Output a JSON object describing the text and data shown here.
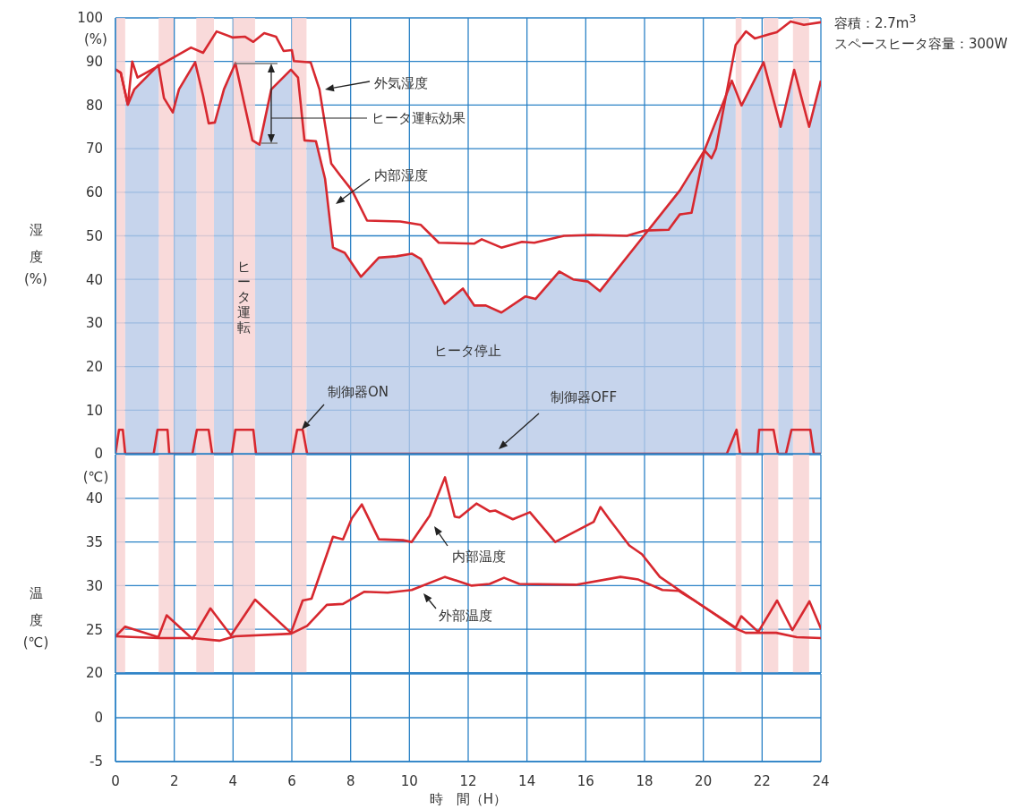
{
  "chart_data": [
    {
      "type": "line",
      "ylabel": "湿度(%)",
      "xlim": [
        0,
        24
      ],
      "xticks": [
        0,
        2,
        4,
        6,
        8,
        10,
        12,
        14,
        16,
        18,
        20,
        22,
        24
      ],
      "ylim": [
        0,
        100
      ],
      "yticks": [
        0,
        10,
        20,
        30,
        40,
        50,
        60,
        70,
        80,
        90,
        100
      ],
      "grid": true,
      "tick_labels": "y",
      "series": [
        {
          "type": "area",
          "color": "#d7282f",
          "x": [
            0,
            0.18,
            0.42,
            0.64,
            1.46,
            1.65,
            1.95,
            2.16,
            2.71,
            2.98,
            3.17,
            3.38,
            3.69,
            4.08,
            4.39,
            4.66,
            4.9,
            5.3,
            5.97,
            6.21,
            6.43,
            6.82,
            7.13,
            7.4,
            7.8,
            8.35,
            8.96,
            9.56,
            10.08,
            10.39,
            11.2,
            11.82,
            12.21,
            12.6,
            13.13,
            13.95,
            14.29,
            15.1,
            15.57,
            16.08,
            16.48,
            18.0,
            19.2,
            20.04,
            20.97,
            21.3,
            22.05,
            22.63,
            23.09,
            23.6,
            24
          ],
          "values": [
            88.2,
            87.4,
            80.1,
            83.6,
            89.2,
            81.6,
            78.3,
            83.6,
            89.8,
            82.2,
            75.8,
            76,
            83.6,
            89.6,
            80.1,
            71.9,
            70.9,
            83.6,
            88.1,
            86.3,
            71.9,
            71.7,
            63.1,
            47.3,
            46.1,
            40.6,
            45,
            45.3,
            45.9,
            44.7,
            34.4,
            37.9,
            34,
            34,
            32.4,
            36.1,
            35.5,
            41.8,
            40,
            39.5,
            37.3,
            50.2,
            60.4,
            69.6,
            85.6,
            79.9,
            89.8,
            75,
            88.1,
            75,
            85.6
          ]
        },
        {
          "type": "line",
          "color": "#d7282f",
          "x": [
            0,
            0.18,
            0.42,
            0.57,
            0.75,
            1.55,
            2.57,
            2.98,
            3.44,
            3.99,
            4.4,
            4.69,
            5.06,
            5.46,
            5.72,
            6.0,
            6.07,
            6.64,
            6.94,
            7.34,
            7.65,
            8.05,
            8.56,
            9.69,
            10.39,
            11.0,
            12.2,
            12.46,
            13.13,
            13.83,
            14.25,
            15.26,
            16.2,
            17.4,
            18.0,
            18.82,
            19.2,
            19.6,
            20.04,
            20.28,
            20.43,
            21.1,
            21.45,
            21.75,
            22.27,
            22.5,
            22.97,
            23.42,
            24
          ],
          "values": [
            88.2,
            87.4,
            80.1,
            90,
            86.3,
            89.3,
            93.2,
            92,
            96.9,
            95.5,
            95.7,
            94.5,
            96.5,
            95.7,
            92.4,
            92.6,
            90.1,
            89.8,
            83.6,
            66.6,
            63.8,
            60.4,
            53.5,
            53.3,
            52.5,
            48.4,
            48.2,
            49.2,
            47.3,
            48.6,
            48.4,
            50,
            50.2,
            50,
            51.2,
            51.4,
            54.9,
            55.3,
            69.6,
            67.8,
            70,
            93.8,
            96.9,
            95.3,
            96.3,
            96.7,
            99.2,
            98.4,
            99
          ]
        },
        {
          "type": "line",
          "color": "#d7282f",
          "x": [
            0,
            0.12,
            0.25,
            0.33,
            1.3,
            1.43,
            1.77,
            1.83,
            2.62,
            2.77,
            3.17,
            3.29,
            3.96,
            4.08,
            4.69,
            4.78,
            6.03,
            6.18,
            6.37,
            6.52,
            20.8,
            21.13,
            21.25,
            21.84,
            21.9,
            22.39,
            22.54,
            22.81,
            23.0,
            23.64,
            23.76,
            24
          ],
          "values": [
            0,
            5.5,
            5.5,
            0,
            0,
            5.5,
            5.5,
            0,
            0,
            5.5,
            5.5,
            0,
            0,
            5.5,
            5.5,
            0,
            0,
            5.5,
            5.5,
            0,
            0,
            5.5,
            0,
            0,
            5.5,
            5.5,
            0,
            0,
            5.5,
            5.5,
            0,
            0
          ]
        }
      ],
      "bands": [
        {
          "axis": "x",
          "from": 0,
          "to": 0.33,
          "color": "#f8d4d3"
        },
        {
          "axis": "x",
          "from": 1.47,
          "to": 1.98,
          "color": "#f8d4d3"
        },
        {
          "axis": "x",
          "from": 2.75,
          "to": 3.35,
          "color": "#f8d4d3"
        },
        {
          "axis": "x",
          "from": 4.0,
          "to": 4.75,
          "color": "#f8d4d3"
        },
        {
          "axis": "x",
          "from": 6.0,
          "to": 6.5,
          "color": "#f8d4d3"
        },
        {
          "axis": "x",
          "from": 21.1,
          "to": 21.3,
          "color": "#f8d4d3"
        },
        {
          "axis": "x",
          "from": 22.05,
          "to": 22.55,
          "color": "#f8d4d3"
        },
        {
          "axis": "x",
          "from": 23.05,
          "to": 23.6,
          "color": "#f8d4d3"
        }
      ],
      "annotations": [
        "(%)",
        "容積：2.7m$^{3}$",
        "スペースヒータ容量：300W",
        "外気湿度",
        "ヒータ運転効果",
        "内部湿度",
        "ヒータ運転",
        "ヒータ停止",
        "制御器ON",
        "制御器OFF"
      ]
    },
    {
      "type": "line",
      "ylabel": "温度(℃)",
      "xlim": [
        0,
        24
      ],
      "xticks": [
        0,
        2,
        4,
        6,
        8,
        10,
        12,
        14,
        16,
        18,
        20,
        22,
        24
      ],
      "ylim": [
        20,
        45
      ],
      "yticks": [
        20,
        25,
        30,
        35,
        40
      ],
      "grid": true,
      "tick_labels": "y",
      "series": [
        {
          "color": "#d7282f",
          "x": [
            0,
            0.33,
            1.46,
            1.74,
            2.62,
            3.23,
            3.93,
            4.75,
            5.97,
            6.37,
            6.67,
            7.4,
            7.74,
            8.04,
            8.38,
            8.96,
            9.78,
            10.08,
            10.69,
            11.21,
            11.54,
            11.7,
            12.28,
            12.73,
            12.92,
            13.52,
            14.1,
            14.96,
            16.27,
            16.5,
            16.78,
            17.48,
            17.91,
            18.52,
            19.74,
            21.1,
            21.29,
            21.87,
            22.51,
            23.03,
            23.61,
            24
          ],
          "values": [
            24.2,
            25.3,
            24.1,
            26.6,
            23.9,
            27.4,
            24.3,
            28.4,
            24.6,
            28.3,
            28.5,
            35.6,
            35.3,
            37.7,
            39.3,
            35.3,
            35.2,
            35,
            38,
            42.4,
            37.9,
            37.8,
            39.4,
            38.5,
            38.6,
            37.6,
            38.4,
            35,
            37.3,
            39,
            37.7,
            34.6,
            33.6,
            31,
            28.2,
            25.2,
            26.5,
            24.7,
            28.3,
            24.9,
            28.2,
            25.1
          ]
        },
        {
          "color": "#d7282f",
          "x": [
            0,
            1.46,
            2.62,
            3.53,
            4.08,
            5.97,
            6.52,
            7.19,
            7.74,
            8.47,
            9.26,
            10.08,
            11.21,
            12.12,
            12.73,
            13.22,
            13.74,
            15.66,
            17.18,
            17.79,
            18.61,
            19.16,
            19.74,
            21.1,
            21.44,
            22.48,
            23.18,
            24
          ],
          "values": [
            24.2,
            24,
            24,
            23.7,
            24.2,
            24.5,
            25.4,
            27.8,
            27.9,
            29.3,
            29.2,
            29.5,
            31,
            30,
            30.2,
            30.9,
            30.2,
            30.1,
            31,
            30.7,
            29.5,
            29.4,
            28.2,
            25.1,
            24.6,
            24.6,
            24.1,
            24
          ]
        }
      ],
      "bands": [
        {
          "axis": "x",
          "from": 0,
          "to": 0.33,
          "color": "#f8d4d3"
        },
        {
          "axis": "x",
          "from": 1.47,
          "to": 1.98,
          "color": "#f8d4d3"
        },
        {
          "axis": "x",
          "from": 2.75,
          "to": 3.35,
          "color": "#f8d4d3"
        },
        {
          "axis": "x",
          "from": 4.0,
          "to": 4.75,
          "color": "#f8d4d3"
        },
        {
          "axis": "x",
          "from": 6.0,
          "to": 6.5,
          "color": "#f8d4d3"
        },
        {
          "axis": "x",
          "from": 21.1,
          "to": 21.3,
          "color": "#f8d4d3"
        },
        {
          "axis": "x",
          "from": 22.05,
          "to": 22.55,
          "color": "#f8d4d3"
        },
        {
          "axis": "x",
          "from": 23.05,
          "to": 23.6,
          "color": "#f8d4d3"
        }
      ],
      "annotations": [
        "(℃)",
        "内部温度",
        "外部温度"
      ]
    },
    {
      "type": "line",
      "xlabel": "時　間（H）",
      "xlim": [
        0,
        24
      ],
      "xticks": [
        0,
        2,
        4,
        6,
        8,
        10,
        12,
        14,
        16,
        18,
        20,
        22,
        24
      ],
      "ylim": [
        -5,
        5
      ],
      "yticks": [
        -5,
        0
      ],
      "grid": true
    }
  ]
}
